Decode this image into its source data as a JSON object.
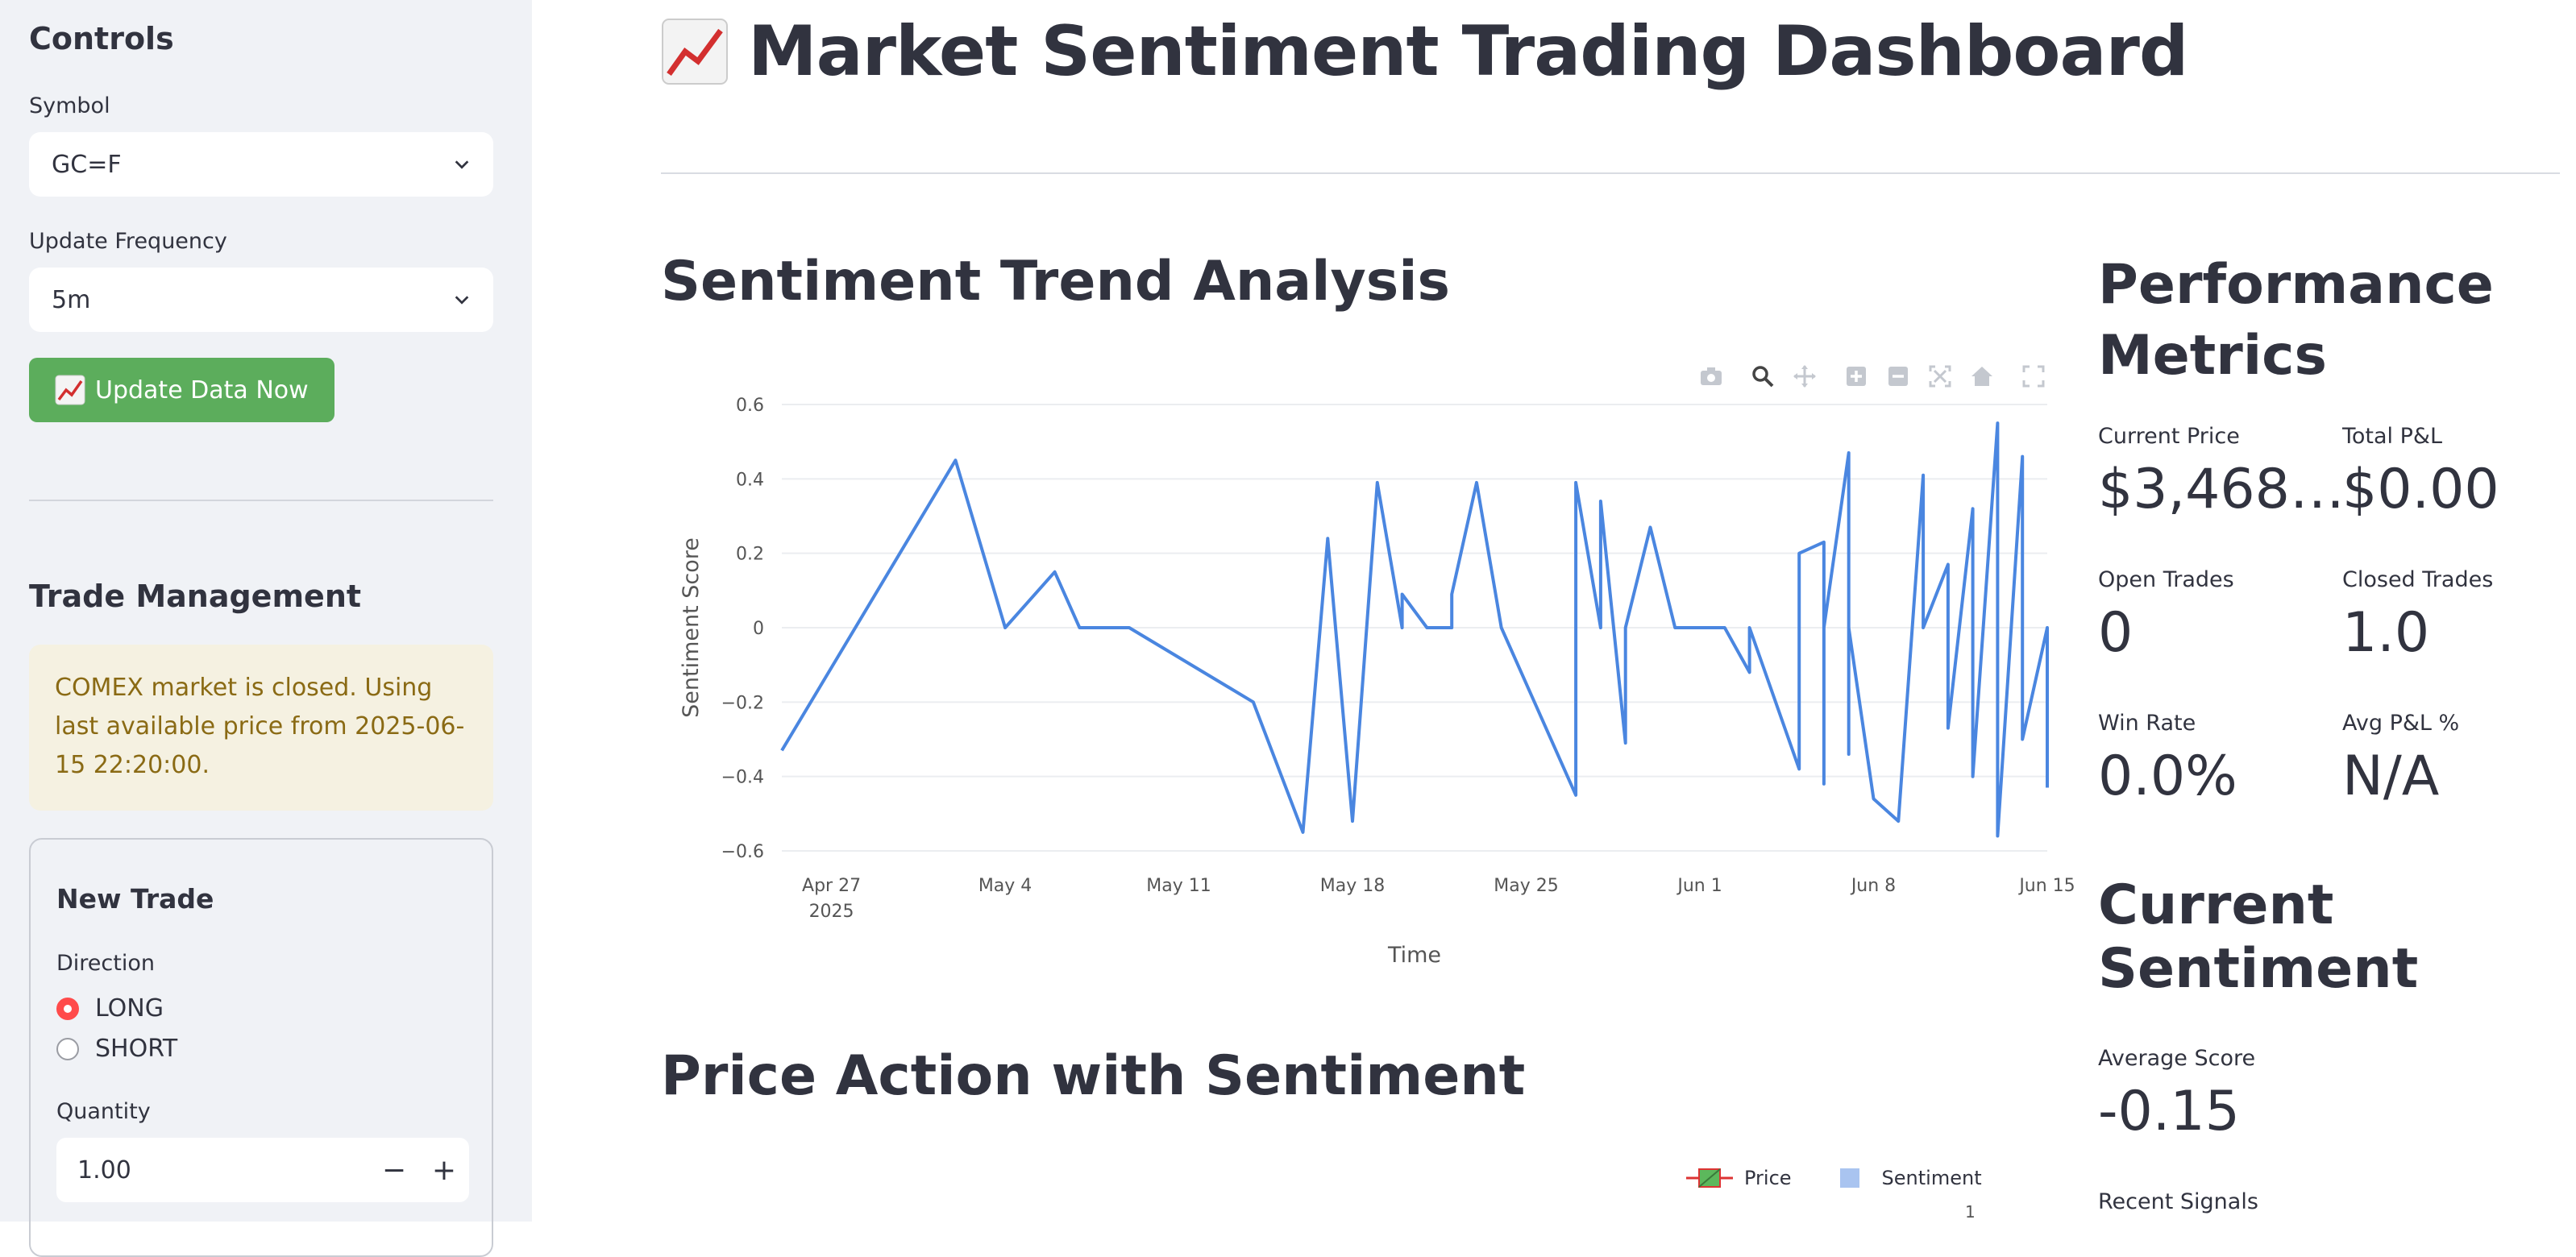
{
  "sidebar": {
    "controls_title": "Controls",
    "symbol_label": "Symbol",
    "symbol_value": "GC=F",
    "frequency_label": "Update Frequency",
    "frequency_value": "5m",
    "update_button": "Update Data Now",
    "trade_title": "Trade Management",
    "alert_text": "COMEX market is closed. Using last available price from 2025-06-15 22:20:00.",
    "new_trade": {
      "title": "New Trade",
      "direction_label": "Direction",
      "options": [
        "LONG",
        "SHORT"
      ],
      "selected": "LONG",
      "quantity_label": "Quantity",
      "quantity_value": "1.00",
      "minus": "−",
      "plus": "+"
    }
  },
  "main": {
    "title": "Market Sentiment Trading Dashboard",
    "sentiment_section": "Sentiment Trend Analysis",
    "price_section": "Price Action with Sentiment",
    "price_legend": [
      "Price",
      "Sentiment"
    ],
    "price_axis_tick": "1"
  },
  "metrics": {
    "title": "Performance Metrics",
    "items": [
      {
        "label": "Current Price",
        "value": "$3,468…"
      },
      {
        "label": "Total P&L",
        "value": "$0.00"
      },
      {
        "label": "Open Trades",
        "value": "0"
      },
      {
        "label": "Closed Trades",
        "value": "1.0"
      },
      {
        "label": "Win Rate",
        "value": "0.0%"
      },
      {
        "label": "Avg P&L %",
        "value": "N/A"
      }
    ]
  },
  "current_sentiment": {
    "title": "Current Sentiment",
    "avg_label": "Average Score",
    "avg_value": "-0.15",
    "recent_label": "Recent Signals"
  },
  "colors": {
    "line": "#4a86e0",
    "button": "#5cad5c",
    "radio_on": "#ff4b4b",
    "alert_text": "#8a6a14"
  },
  "chart_data": {
    "type": "line",
    "title": "",
    "xlabel": "Time",
    "ylabel": "Sentiment Score",
    "ylim": [
      -0.6,
      0.6
    ],
    "yticks": [
      0.6,
      0.4,
      0.2,
      0,
      -0.2,
      -0.4,
      -0.6
    ],
    "ytick_labels": [
      "0.6",
      "0.4",
      "0.2",
      "0",
      "−0.2",
      "−0.4",
      "−0.6"
    ],
    "xlim": [
      "2025-04-25",
      "2025-06-15"
    ],
    "xticks": [
      "2025-04-27",
      "2025-05-04",
      "2025-05-11",
      "2025-05-18",
      "2025-05-25",
      "2025-06-01",
      "2025-06-08",
      "2025-06-15"
    ],
    "xtick_labels": [
      "Apr 27",
      "May 4",
      "May 11",
      "May 18",
      "May 25",
      "Jun 1",
      "Jun 8",
      "Jun 15"
    ],
    "xtick_sublabel": "2025",
    "grid": true,
    "series": [
      {
        "x": [
          "2025-04-25",
          "2025-05-02",
          "2025-05-04",
          "2025-05-06",
          "2025-05-07",
          "2025-05-09",
          "2025-05-14",
          "2025-05-16",
          "2025-05-17",
          "2025-05-18",
          "2025-05-19",
          "2025-05-20",
          "2025-05-20",
          "2025-05-21",
          "2025-05-22",
          "2025-05-22",
          "2025-05-23",
          "2025-05-24",
          "2025-05-24",
          "2025-05-27",
          "2025-05-27",
          "2025-05-28",
          "2025-05-28",
          "2025-05-29",
          "2025-05-29",
          "2025-05-29",
          "2025-05-30",
          "2025-05-31",
          "2025-05-31",
          "2025-06-01",
          "2025-06-02",
          "2025-06-03",
          "2025-06-03",
          "2025-06-03",
          "2025-06-05",
          "2025-06-05",
          "2025-06-06",
          "2025-06-06",
          "2025-06-06",
          "2025-06-07",
          "2025-06-07",
          "2025-06-07",
          "2025-06-08",
          "2025-06-09",
          "2025-06-10",
          "2025-06-10",
          "2025-06-11",
          "2025-06-11",
          "2025-06-12",
          "2025-06-12",
          "2025-06-13",
          "2025-06-13",
          "2025-06-14",
          "2025-06-14",
          "2025-06-15",
          "2025-06-15"
        ],
        "y": [
          -0.33,
          0.45,
          0.0,
          0.15,
          0.0,
          0.0,
          -0.2,
          -0.55,
          0.24,
          -0.52,
          0.39,
          0.0,
          0.09,
          0.0,
          0.0,
          0.09,
          0.39,
          0.0,
          0.0,
          -0.45,
          0.39,
          0.0,
          0.34,
          -0.31,
          -0.12,
          0.0,
          0.27,
          0.0,
          0.0,
          0.0,
          0.0,
          -0.12,
          0.0,
          0.0,
          -0.38,
          0.2,
          0.23,
          -0.42,
          0.0,
          0.47,
          -0.34,
          0.0,
          -0.46,
          -0.52,
          0.41,
          0.0,
          0.17,
          -0.27,
          0.32,
          -0.4,
          0.55,
          -0.56,
          0.46,
          -0.3,
          0.0,
          -0.43
        ]
      }
    ]
  }
}
